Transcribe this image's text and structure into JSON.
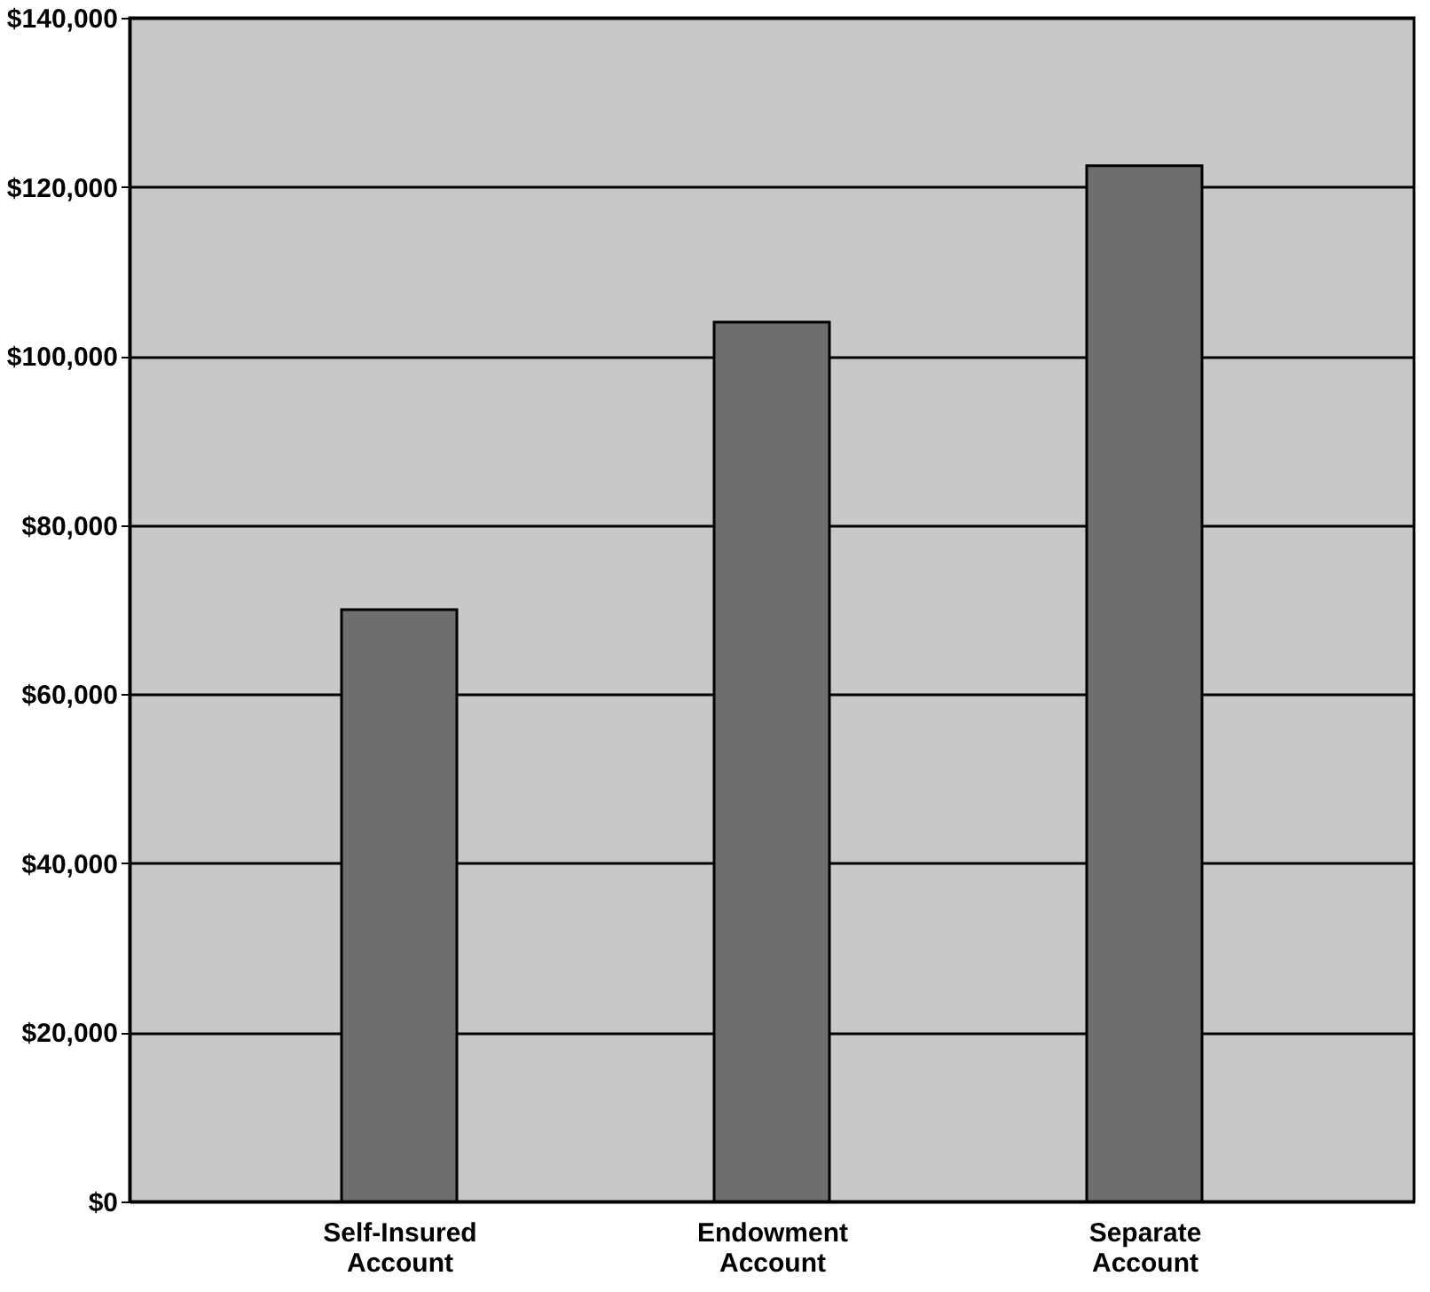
{
  "chart_data": {
    "type": "bar",
    "categories": [
      "Self-Insured Account",
      "Endowment Account",
      "Separate Account"
    ],
    "values": [
      70000,
      104000,
      122500
    ],
    "color": "#6e6e6e",
    "ylim": [
      0,
      140000
    ],
    "yticks": [
      {
        "value": 0,
        "label": "$0"
      },
      {
        "value": 20000,
        "label": "$20,000"
      },
      {
        "value": 40000,
        "label": "$40,000"
      },
      {
        "value": 60000,
        "label": "$60,000"
      },
      {
        "value": 80000,
        "label": "$80,000"
      },
      {
        "value": 100000,
        "label": "$100,000"
      },
      {
        "value": 120000,
        "label": "$120,000"
      },
      {
        "value": 140000,
        "label": "$140,000"
      }
    ],
    "grid": "y"
  }
}
